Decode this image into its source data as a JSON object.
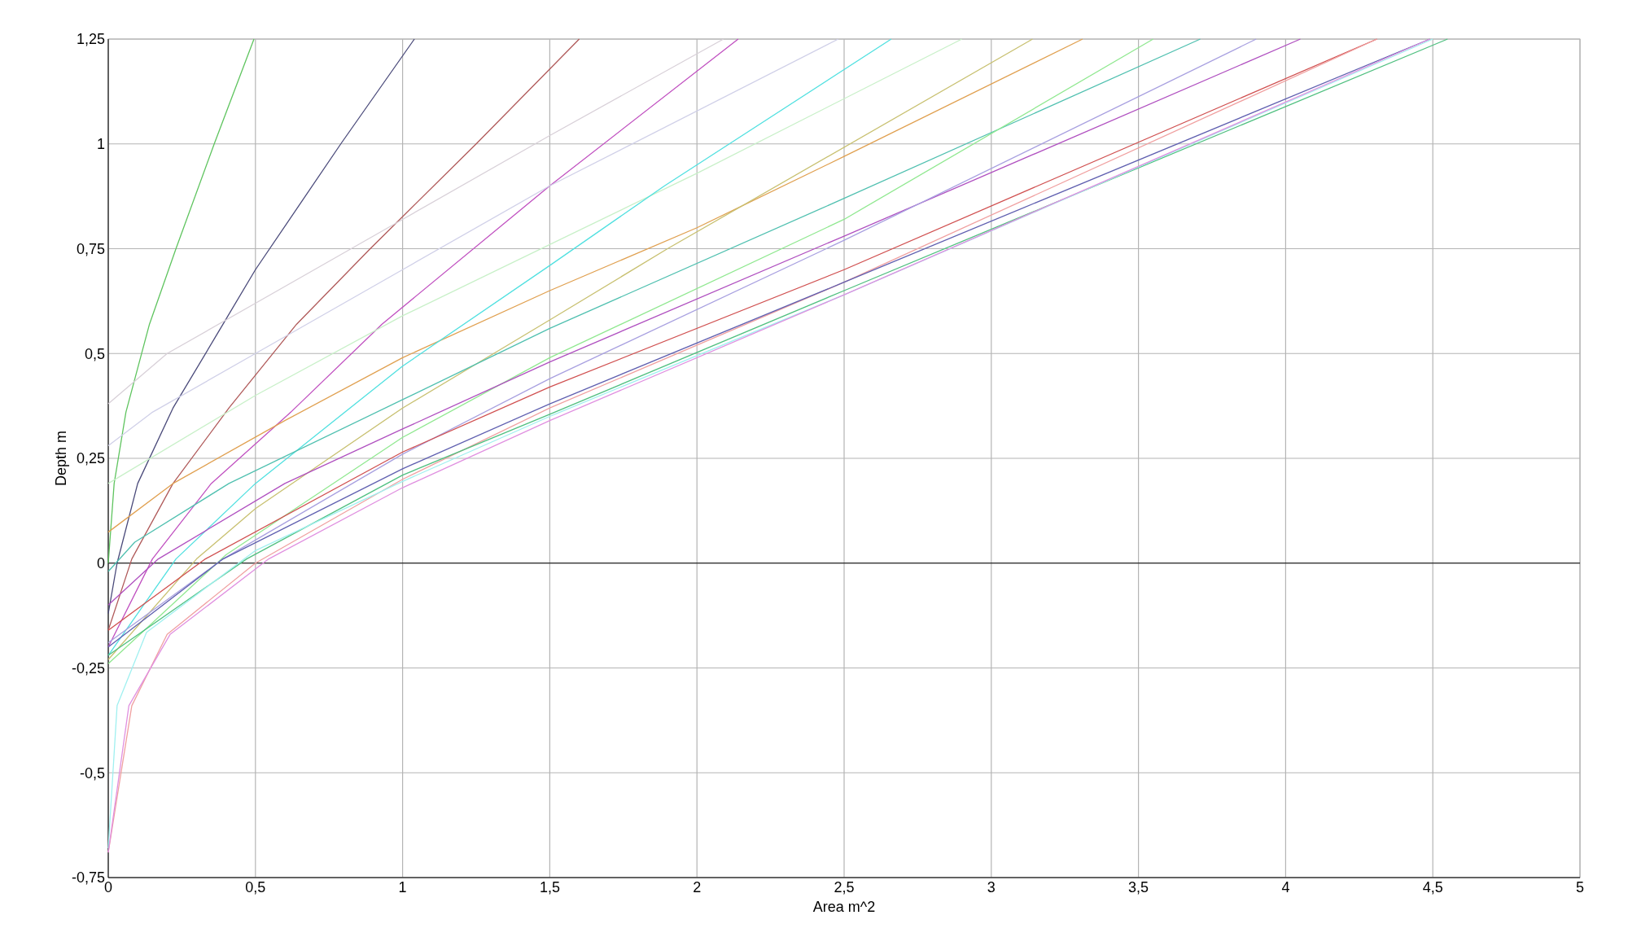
{
  "chart_data": {
    "type": "line",
    "xlabel": "Area  m^2",
    "ylabel": "Depth  m",
    "xlim": [
      0,
      5
    ],
    "ylim": [
      -0.75,
      1.25
    ],
    "xticks": [
      0,
      {
        "value": 0.5,
        "label": "0,5"
      },
      1,
      {
        "value": 1.5,
        "label": "1,5"
      },
      2,
      {
        "value": 2.5,
        "label": "2,5"
      },
      3,
      {
        "value": 3.5,
        "label": "3,5"
      },
      4,
      {
        "value": 4.5,
        "label": "4,5"
      },
      5
    ],
    "yticks": [
      {
        "value": -0.75,
        "label": "-0,75"
      },
      {
        "value": -0.5,
        "label": "-0,5"
      },
      {
        "value": -0.25,
        "label": "-0,25"
      },
      0,
      {
        "value": 0.25,
        "label": "0,25"
      },
      {
        "value": 0.5,
        "label": "0,5"
      },
      {
        "value": 0.75,
        "label": "0,75"
      },
      1,
      {
        "value": 1.25,
        "label": "1,25"
      }
    ],
    "grid": true,
    "marker": "none",
    "line_style": "solid",
    "ref_lines": [
      {
        "axis": "y",
        "value": 0,
        "color": "#000000"
      }
    ],
    "series": [
      {
        "color": "#5fc45f",
        "x": [
          0,
          0.02,
          0.06,
          0.14,
          0.23,
          0.36,
          0.495
        ],
        "values": [
          0,
          0.19,
          0.36,
          0.57,
          0.75,
          1,
          1.25
        ]
      },
      {
        "color": "#4a4a7a",
        "x": [
          0,
          0.03,
          0.1,
          0.22,
          0.39,
          0.5,
          0.79,
          1.04
        ],
        "values": [
          -0.12,
          0,
          0.19,
          0.37,
          0.57,
          0.7,
          1,
          1.25
        ]
      },
      {
        "color": "#b05a5a",
        "x": [
          0,
          0.08,
          0.22,
          0.41,
          0.64,
          0.89,
          1.25,
          1.6
        ],
        "values": [
          -0.16,
          0.01,
          0.19,
          0.37,
          0.57,
          0.75,
          1,
          1.25
        ]
      },
      {
        "color": "#c050c0",
        "x": [
          0,
          0.15,
          0.35,
          0.62,
          0.93,
          1.5,
          2.14
        ],
        "values": [
          -0.2,
          0.01,
          0.19,
          0.36,
          0.57,
          0.9,
          1.25
        ]
      },
      {
        "color": "#d8d0d8",
        "x": [
          0,
          0.2,
          0.5,
          1,
          1.5,
          2.09
        ],
        "values": [
          0.38,
          0.5,
          0.62,
          0.82,
          1.02,
          1.25
        ]
      },
      {
        "color": "#d0d0e8",
        "x": [
          0,
          0.15,
          0.5,
          1,
          1.5,
          2.48
        ],
        "values": [
          0.28,
          0.36,
          0.5,
          0.7,
          0.9,
          1.25
        ]
      },
      {
        "color": "#c8f0c8",
        "x": [
          0,
          0.5,
          1,
          1.5,
          2,
          2.9
        ],
        "values": [
          0.19,
          0.4,
          0.59,
          0.76,
          0.93,
          1.25
        ]
      },
      {
        "color": "#e0a050",
        "x": [
          0,
          0.22,
          0.6,
          1,
          1.5,
          2,
          2.5,
          3.31
        ],
        "values": [
          0.074,
          0.19,
          0.34,
          0.49,
          0.65,
          0.8,
          0.97,
          1.25
        ]
      },
      {
        "color": "#50e0e0",
        "x": [
          0,
          0.23,
          0.5,
          1,
          1.5,
          1.89,
          2.66
        ],
        "values": [
          -0.22,
          0.01,
          0.19,
          0.47,
          0.71,
          0.9,
          1.25
        ]
      },
      {
        "color": "#c8c070",
        "x": [
          0,
          0.3,
          0.5,
          1,
          1.5,
          1.9,
          3.14
        ],
        "values": [
          -0.23,
          0.01,
          0.13,
          0.37,
          0.58,
          0.75,
          1.25
        ]
      },
      {
        "color": "#50c0b0",
        "x": [
          0,
          0.09,
          0.41,
          1,
          1.5,
          2.5,
          3.71
        ],
        "values": [
          -0.02,
          0.05,
          0.19,
          0.39,
          0.56,
          0.87,
          1.25
        ]
      },
      {
        "color": "#90e890",
        "x": [
          0,
          0.4,
          1,
          1.5,
          2.5,
          3.55
        ],
        "values": [
          -0.24,
          0.02,
          0.3,
          0.49,
          0.82,
          1.25
        ]
      },
      {
        "color": "#b050c0",
        "x": [
          0,
          0.17,
          0.6,
          1,
          1.5,
          2.5,
          4.05
        ],
        "values": [
          -0.1,
          0.01,
          0.19,
          0.32,
          0.48,
          0.78,
          1.25
        ]
      },
      {
        "color": "#a8a0e0",
        "x": [
          0,
          0.39,
          1,
          1.5,
          2.5,
          3.9
        ],
        "values": [
          -0.19,
          0.01,
          0.26,
          0.44,
          0.77,
          1.25
        ]
      },
      {
        "color": "#d05050",
        "x": [
          0,
          0.33,
          1,
          1.5,
          2.5,
          4.31
        ],
        "values": [
          -0.16,
          0.01,
          0.265,
          0.42,
          0.7,
          1.25
        ]
      },
      {
        "color": "#f0a0a0",
        "x": [
          0,
          0.08,
          0.2,
          0.5,
          1,
          1.5,
          2.5,
          4.31
        ],
        "values": [
          -0.69,
          -0.34,
          -0.17,
          0,
          0.2,
          0.37,
          0.67,
          1.25
        ]
      },
      {
        "color": "#6060b0",
        "x": [
          0,
          0.39,
          1,
          1.5,
          2.5,
          4.49
        ],
        "values": [
          -0.2,
          0.01,
          0.225,
          0.38,
          0.67,
          1.25
        ]
      },
      {
        "color": "#50c080",
        "x": [
          0,
          0.47,
          1,
          1.5,
          2.5,
          4.55
        ],
        "values": [
          -0.22,
          0.01,
          0.21,
          0.355,
          0.65,
          1.25
        ]
      },
      {
        "color": "#a0f0f0",
        "x": [
          0,
          0.03,
          0.13,
          0.5,
          1,
          1.5,
          2.5,
          4.5
        ],
        "values": [
          -0.68,
          -0.34,
          -0.165,
          0.03,
          0.195,
          0.35,
          0.64,
          1.25
        ]
      },
      {
        "color": "#e090e0",
        "x": [
          0,
          0.07,
          0.21,
          0.545,
          1,
          1.5,
          2.5,
          4.49
        ],
        "values": [
          -0.69,
          -0.34,
          -0.17,
          0.01,
          0.18,
          0.34,
          0.64,
          1.25
        ]
      }
    ]
  }
}
